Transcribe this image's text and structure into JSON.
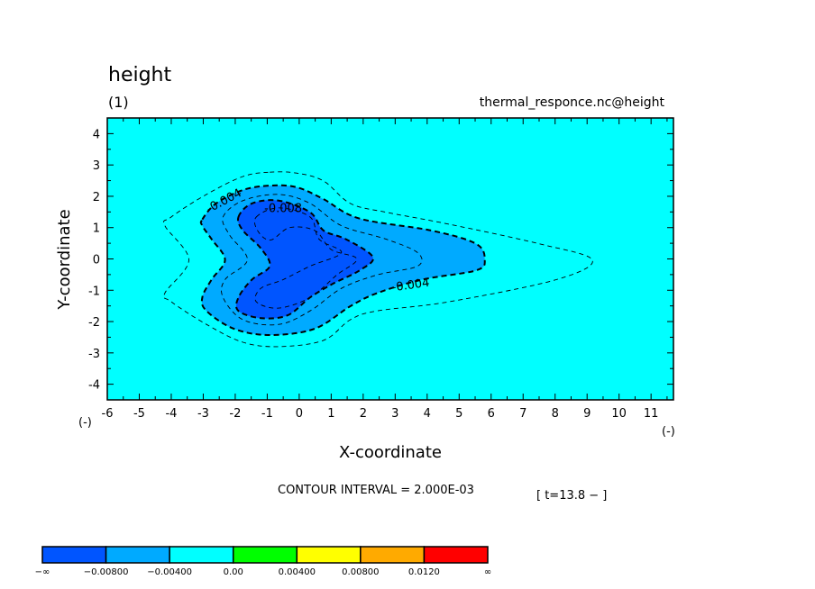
{
  "chart_data": {
    "type": "contour",
    "title": "height",
    "subtitle": "(1)",
    "source": "thermal_responce.nc@height",
    "xlabel": "X-coordinate",
    "ylabel": "Y-coordinate",
    "x_unit": "(-)",
    "y_unit": "(-)",
    "xlim": [
      -6,
      11.7
    ],
    "ylim": [
      -4.5,
      4.5
    ],
    "xticks": [
      "-6",
      "-5",
      "-4",
      "-3",
      "-2",
      "-1",
      "0",
      "1",
      "2",
      "3",
      "4",
      "5",
      "6",
      "7",
      "8",
      "9",
      "10",
      "11"
    ],
    "yticks": [
      "-4",
      "-3",
      "-2",
      "-1",
      "0",
      "1",
      "2",
      "3",
      "4"
    ],
    "background_color": "#00ffff",
    "contour_interval_text": "CONTOUR INTERVAL = 2.000E-03",
    "time_text": "[ t=13.8 − ]",
    "contours": [
      {
        "level": -0.002,
        "fill": null,
        "style": "thin",
        "points": [
          [
            -0.92,
            2.77
          ],
          [
            -0.08,
            2.74
          ],
          [
            0.76,
            2.49
          ],
          [
            1.6,
            1.77
          ],
          [
            2.72,
            1.49
          ],
          [
            4.68,
            1.11
          ],
          [
            7.48,
            0.49
          ],
          [
            9.16,
            -0.03
          ],
          [
            8.04,
            -0.66
          ],
          [
            4.68,
            -1.37
          ],
          [
            2.44,
            -1.66
          ],
          [
            1.6,
            -1.94
          ],
          [
            0.76,
            -2.6
          ],
          [
            -0.64,
            -2.8
          ],
          [
            -1.76,
            -2.66
          ],
          [
            -2.9,
            -2.09
          ],
          [
            -4.0,
            -1.37
          ],
          [
            -4.2,
            -1.09
          ],
          [
            -3.45,
            -0.03
          ],
          [
            -4.2,
            1.06
          ],
          [
            -4.0,
            1.34
          ],
          [
            -2.9,
            2.06
          ],
          [
            -1.76,
            2.63
          ]
        ]
      },
      {
        "level": -0.004,
        "fill": "#00aaff",
        "style": "thick",
        "points": [
          [
            -3.03,
            1.26
          ],
          [
            -2.6,
            1.77
          ],
          [
            -1.76,
            2.2
          ],
          [
            -0.92,
            2.34
          ],
          [
            -0.08,
            2.29
          ],
          [
            0.76,
            1.91
          ],
          [
            1.88,
            1.29
          ],
          [
            4.12,
            0.91
          ],
          [
            5.52,
            0.49
          ],
          [
            5.8,
            -0.03
          ],
          [
            5.52,
            -0.37
          ],
          [
            3.84,
            -0.66
          ],
          [
            2.44,
            -1.09
          ],
          [
            1.6,
            -1.51
          ],
          [
            0.48,
            -2.23
          ],
          [
            -0.92,
            -2.43
          ],
          [
            -2.04,
            -2.23
          ],
          [
            -2.9,
            -1.66
          ],
          [
            -3.03,
            -1.23
          ],
          [
            -2.74,
            -0.66
          ],
          [
            -2.32,
            -0.03
          ],
          [
            -2.74,
            0.63
          ],
          [
            -3.03,
            1.06
          ]
        ]
      },
      {
        "level": -0.006,
        "fill": null,
        "style": "thin",
        "points": [
          [
            -2.38,
            1.34
          ],
          [
            -1.76,
            1.86
          ],
          [
            -0.64,
            2.06
          ],
          [
            0.34,
            1.77
          ],
          [
            1.32,
            1.06
          ],
          [
            2.72,
            0.63
          ],
          [
            3.7,
            0.2
          ],
          [
            3.7,
            -0.23
          ],
          [
            2.44,
            -0.51
          ],
          [
            1.32,
            -0.94
          ],
          [
            0.34,
            -1.66
          ],
          [
            -0.64,
            -2.09
          ],
          [
            -1.76,
            -1.94
          ],
          [
            -2.38,
            -1.23
          ],
          [
            -2.32,
            -0.66
          ],
          [
            -1.62,
            -0.03
          ],
          [
            -2.18,
            0.77
          ]
        ]
      },
      {
        "level": -0.008,
        "fill": "#0055ff",
        "style": "thick",
        "points": [
          [
            -1.9,
            1.34
          ],
          [
            -1.48,
            1.77
          ],
          [
            -0.64,
            1.86
          ],
          [
            0.34,
            1.49
          ],
          [
            0.76,
            0.91
          ],
          [
            1.46,
            0.63
          ],
          [
            2.3,
            0.06
          ],
          [
            1.88,
            -0.37
          ],
          [
            1.04,
            -0.8
          ],
          [
            0.34,
            -1.23
          ],
          [
            -0.36,
            -1.8
          ],
          [
            -1.2,
            -1.89
          ],
          [
            -1.9,
            -1.66
          ],
          [
            -1.9,
            -1.23
          ],
          [
            -1.48,
            -0.66
          ],
          [
            -0.92,
            -0.23
          ],
          [
            -1.2,
            0.34
          ],
          [
            -1.76,
            0.91
          ]
        ]
      },
      {
        "level": -0.01,
        "fill": null,
        "style": "thin",
        "points": [
          [
            -1.34,
            1.34
          ],
          [
            -0.64,
            1.63
          ],
          [
            0.34,
            1.34
          ],
          [
            0.62,
            0.63
          ],
          [
            1.32,
            0.2
          ],
          [
            0.34,
            -0.23
          ],
          [
            -0.5,
            -0.66
          ],
          [
            -1.2,
            -0.94
          ],
          [
            -1.34,
            -1.37
          ],
          [
            -0.64,
            -1.57
          ],
          [
            0.34,
            -1.23
          ],
          [
            1.18,
            -0.51
          ],
          [
            1.8,
            0.0
          ],
          [
            1.0,
            0.3
          ],
          [
            0.5,
            0.9
          ],
          [
            -0.3,
            1.0
          ],
          [
            -0.9,
            0.6
          ],
          [
            -1.3,
            0.9
          ]
        ]
      }
    ],
    "contour_labels": [
      {
        "text": "-0.004",
        "x": -2.3,
        "y": 1.75,
        "angle": -28
      },
      {
        "text": "-0.008",
        "x": -0.5,
        "y": 1.5,
        "angle": 0
      },
      {
        "text": "-0.004",
        "x": 3.5,
        "y": -0.95,
        "angle": -8
      }
    ],
    "colorbar": {
      "colors": [
        "#0055ff",
        "#00aaff",
        "#00ffff",
        "#00ff00",
        "#ffff00",
        "#ffaa00",
        "#ff0000"
      ],
      "labels": [
        "−∞",
        "−0.00800",
        "−0.00400",
        "0.00",
        "0.00400",
        "0.00800",
        "0.0120",
        "∞"
      ]
    }
  }
}
